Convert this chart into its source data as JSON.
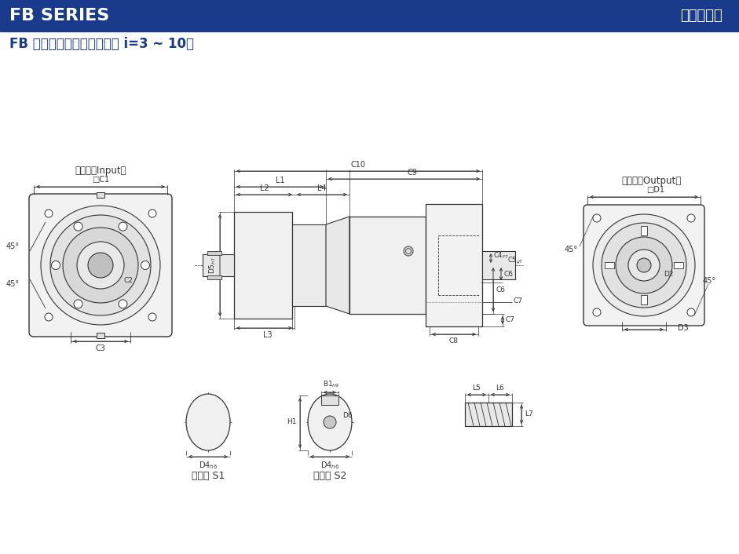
{
  "bg_color": "#ffffff",
  "header_bg": "#1a3a8c",
  "header_text_left": "FB SERIES",
  "header_text_right": "行星减速机",
  "subtitle": "FB 系列尺廸（单节，减速比 i=3 ~ 10）",
  "input_label": "输入端（Input）",
  "output_label": "输出端（Output）",
  "axis_type1_label": "轴型式 S1",
  "axis_type2_label": "轴型式 S2",
  "line_color": "#333333",
  "dim_color": "#333333",
  "title_color": "#1a3a8c"
}
